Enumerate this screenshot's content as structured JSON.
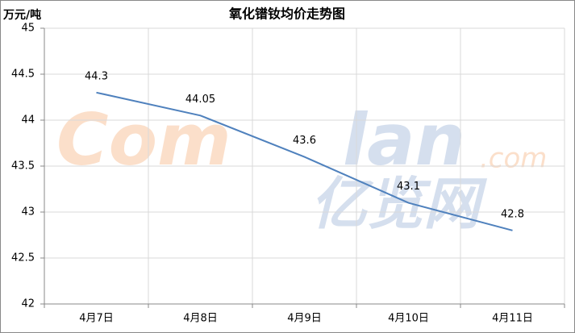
{
  "chart_data": {
    "type": "line",
    "title": "氧化镨钕均价走势图",
    "y_label": "万元/吨",
    "categories": [
      "4月7日",
      "4月8日",
      "4月9日",
      "4月10日",
      "4月11日"
    ],
    "series": [
      {
        "name": "氧化镨钕",
        "color": "#4f81bd",
        "values": [
          44.3,
          44.05,
          43.6,
          43.1,
          42.8
        ]
      }
    ],
    "ylim": [
      42,
      45
    ],
    "yticks": [
      42,
      42.5,
      43,
      43.5,
      44,
      44.5,
      45
    ],
    "grid": true,
    "watermark": [
      "Com",
      "lan",
      ".com",
      "亿览网"
    ]
  }
}
